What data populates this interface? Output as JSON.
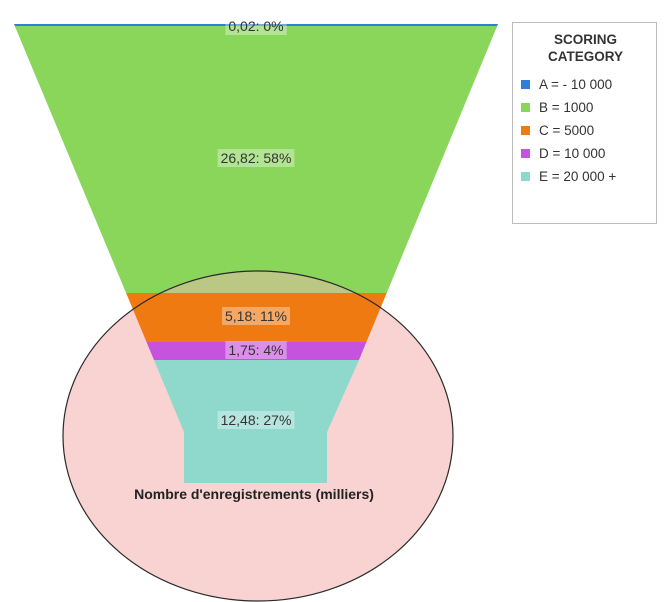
{
  "chart_data": {
    "type": "funnel",
    "caption": "Nombre d'enregistrements (milliers)",
    "segments": [
      {
        "category": "A",
        "value": 0.02,
        "percent": 0,
        "label": "0,02: 0%",
        "color": "#2f7fd8"
      },
      {
        "category": "B",
        "value": 26.82,
        "percent": 58,
        "label": "26,82: 58%",
        "color": "#8ad65a"
      },
      {
        "category": "C",
        "value": 5.18,
        "percent": 11,
        "label": "5,18: 11%",
        "color": "#f07a12"
      },
      {
        "category": "D",
        "value": 1.75,
        "percent": 4,
        "label": "1,75: 4%",
        "color": "#c653de"
      },
      {
        "category": "E",
        "value": 12.48,
        "percent": 27,
        "label": "12,48: 27%",
        "color": "#8ed8cc"
      }
    ],
    "legend": {
      "title_line1": "SCORING",
      "title_line2": "CATEGORY",
      "placement": "top-right",
      "items": [
        {
          "label": "A = - 10 000",
          "color": "#2f7fd8"
        },
        {
          "label": "B = 1000",
          "color": "#8ad65a"
        },
        {
          "label": "C = 5000",
          "color": "#f07a12"
        },
        {
          "label": "D = 10 000",
          "color": "#c653de"
        },
        {
          "label": "E = 20 000 +",
          "color": "#8ed8cc"
        }
      ]
    },
    "highlight_circle_color": "#f9d2d2"
  }
}
